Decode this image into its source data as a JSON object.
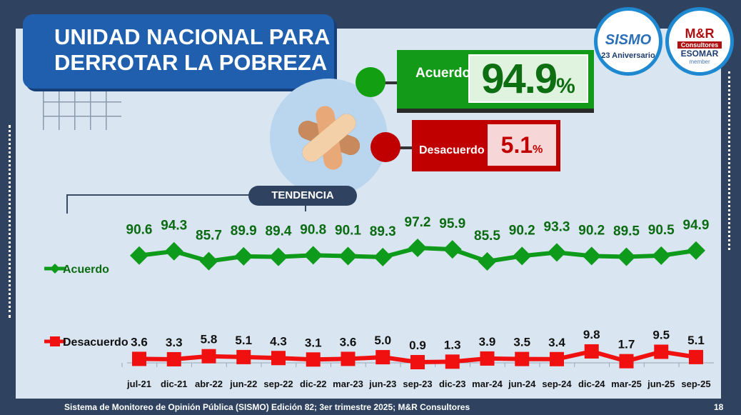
{
  "title": [
    "UNIDAD NACIONAL PARA",
    "DERROTAR LA POBREZA"
  ],
  "agree": {
    "label": "Acuerdo",
    "value": "94.9",
    "unit": "%",
    "color": "#1a9a1a"
  },
  "disagree": {
    "label": "Desacuerdo",
    "value": "5.1",
    "unit": "%",
    "color": "#c00000"
  },
  "trend_label": "TENDENCIA",
  "logos": {
    "sismo": "SISMO",
    "sismo_sub": "23 Aniversario",
    "mr": "M&R",
    "mr_sub": "Consultores",
    "esomar": "ESOMAR",
    "member": "member"
  },
  "footer": "Sistema de Monitoreo de Opinión Pública (SISMO) Edición 82; 3er trimestre 2025; M&R Consultores",
  "page_number": "18",
  "chart_data": {
    "type": "line",
    "categories": [
      "jul-21",
      "dic-21",
      "abr-22",
      "jun-22",
      "sep-22",
      "dic-22",
      "mar-23",
      "jun-23",
      "sep-23",
      "dic-23",
      "mar-24",
      "jun-24",
      "sep-24",
      "dic-24",
      "mar-25",
      "jun-25",
      "sep-25"
    ],
    "series": [
      {
        "name": "Acuerdo",
        "color": "#0e9a1a",
        "label_color": "#0b6b12",
        "values": [
          90.6,
          94.3,
          85.7,
          89.9,
          89.4,
          90.8,
          90.1,
          89.3,
          97.2,
          95.9,
          85.5,
          90.2,
          93.3,
          90.2,
          89.5,
          90.5,
          94.9
        ]
      },
      {
        "name": "Desacuerdo",
        "color": "#f01010",
        "label_color": "#111111",
        "values": [
          3.6,
          3.3,
          5.8,
          5.1,
          4.3,
          3.1,
          3.6,
          5.0,
          0.9,
          1.3,
          3.9,
          3.5,
          3.4,
          9.8,
          1.7,
          9.5,
          5.1
        ]
      }
    ]
  }
}
